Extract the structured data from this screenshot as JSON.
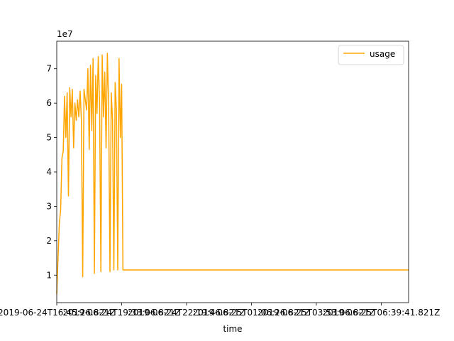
{
  "chart_data": {
    "type": "line",
    "title": "",
    "xlabel": "time",
    "ylabel": "",
    "y_offset_label": "1e7",
    "grid": false,
    "legend_placement": "top-right",
    "x_ticks": [
      "2019-06-24T16:45:26.821Z",
      "2019-06-24T19:33:06.821Z",
      "2019-06-24T22:19:46.821Z",
      "2019-06-25T01:06:26.821Z",
      "2019-06-25T03:53:06.821Z",
      "2019-06-25T06:39:41.821Z"
    ],
    "y_ticks": [
      "1",
      "2",
      "3",
      "4",
      "5",
      "6",
      "7"
    ],
    "ylim": [
      0.2,
      7.8
    ],
    "series": [
      {
        "name": "usage",
        "color": "#FFA500",
        "x": [
          0,
          0.02,
          0.04,
          0.06,
          0.08,
          0.1,
          0.12,
          0.14,
          0.16,
          0.18,
          0.2,
          0.22,
          0.24,
          0.26,
          0.28,
          0.3,
          0.32,
          0.34,
          0.36,
          0.38,
          0.4,
          0.42,
          0.44,
          0.46,
          0.48,
          0.5,
          0.52,
          0.54,
          0.56,
          0.58,
          0.6,
          0.62,
          0.64,
          0.66,
          0.68,
          0.7,
          0.72,
          0.74,
          0.76,
          0.78,
          0.8,
          0.82,
          0.84,
          0.86,
          0.88,
          0.9,
          0.92,
          0.94,
          0.96,
          0.98,
          1.0,
          1.02,
          1.04,
          1.06,
          1.08,
          1.1,
          1.12,
          1.13,
          1.14,
          1.16,
          1.18,
          1.2,
          1.22,
          1.24,
          1.26,
          1.28,
          1.3,
          1.32,
          1.34,
          1.36,
          1.38,
          1.4,
          1.42,
          1.44,
          1.46,
          1.48,
          1.5,
          1.52,
          1.54,
          1.56,
          1.58,
          1.6,
          1.62,
          1.64,
          1.66,
          1.68,
          1.7,
          1.72,
          1.74,
          1.76,
          1.78,
          1.8,
          1.82,
          1.84,
          1.86,
          1.88,
          1.9,
          1.92,
          1.94,
          1.96,
          1.98,
          2.0,
          5.422
        ],
        "y": [
          0.45,
          1.5,
          2.5,
          2.9,
          4.4,
          4.6,
          6.2,
          5.0,
          6.3,
          3.3,
          6.45,
          5.6,
          6.4,
          4.7,
          6.0,
          5.5,
          6.1,
          5.6,
          6.35,
          5.5,
          0.95,
          6.4,
          6.1,
          5.8,
          7.0,
          4.65,
          7.1,
          5.2,
          7.3,
          1.05,
          6.8,
          5.7,
          7.35,
          6.0,
          1.1,
          7.4,
          5.6,
          6.9,
          4.7,
          7.45,
          5.9,
          1.1,
          6.3,
          5.5,
          1.15,
          6.6,
          5.8,
          1.15,
          7.3,
          5.0,
          6.55,
          1.15,
          1.15,
          1.15,
          1.15,
          1.15,
          1.15,
          1.15,
          1.15,
          1.15,
          1.15,
          1.15,
          1.15,
          1.15,
          1.15,
          1.15,
          1.15,
          1.15,
          1.15,
          1.15,
          1.15,
          1.15,
          1.15,
          1.15,
          1.15,
          1.15,
          1.15,
          1.15,
          1.15,
          1.15,
          1.15,
          1.15,
          1.15,
          1.15,
          1.15,
          1.15,
          1.15,
          1.15,
          1.15,
          1.15,
          1.15,
          1.15,
          1.15,
          1.15,
          1.15,
          1.15,
          1.15,
          1.15,
          1.15,
          1.15,
          1.15,
          1.15,
          1.15
        ]
      }
    ]
  }
}
